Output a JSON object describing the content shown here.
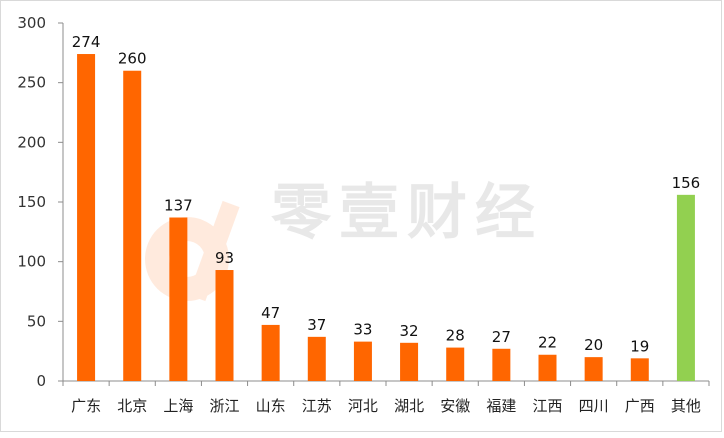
{
  "chart_data": {
    "type": "bar",
    "categories": [
      "广东",
      "北京",
      "上海",
      "浙江",
      "山东",
      "江苏",
      "河北",
      "湖北",
      "安徽",
      "福建",
      "江西",
      "四川",
      "广西",
      "其他"
    ],
    "values": [
      274,
      260,
      137,
      93,
      47,
      37,
      33,
      32,
      28,
      27,
      22,
      20,
      19,
      156
    ],
    "colors": [
      "#ff6600",
      "#ff6600",
      "#ff6600",
      "#ff6600",
      "#ff6600",
      "#ff6600",
      "#ff6600",
      "#ff6600",
      "#ff6600",
      "#ff6600",
      "#ff6600",
      "#ff6600",
      "#ff6600",
      "#92d050"
    ],
    "ylim": [
      0,
      300
    ],
    "yticks": [
      0,
      50,
      100,
      150,
      200,
      250,
      300
    ],
    "grid": false,
    "legend": "none",
    "watermark": "零壹财经"
  }
}
